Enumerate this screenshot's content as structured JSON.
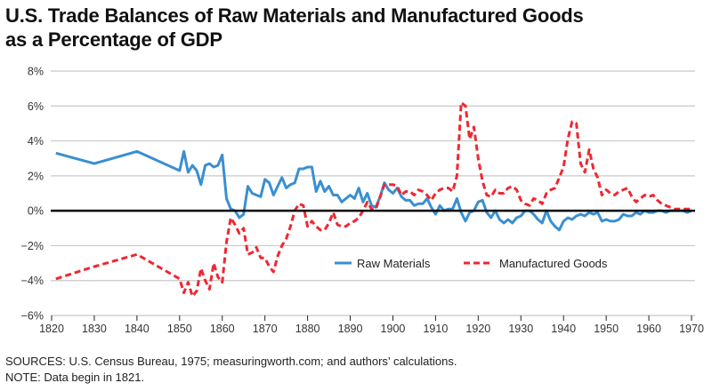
{
  "title_lines": [
    "U.S. Trade Balances of Raw Materials and Manufactured Goods",
    "as a Percentage of GDP"
  ],
  "footer": {
    "sources": "SOURCES: U.S. Census Bureau, 1975; measuringworth.com; and authors’ calculations.",
    "note": "NOTE: Data begin in 1821."
  },
  "colors": {
    "raw_materials": "#3A8FD1",
    "manufactured_goods": "#EE2832",
    "zero_line": "#000000",
    "grid": "#c8c8c8"
  },
  "chart_data": {
    "type": "line",
    "title": "U.S. Trade Balances of Raw Materials and Manufactured Goods as a Percentage of GDP",
    "xlabel": "",
    "ylabel": "",
    "xlim": [
      1820,
      1970
    ],
    "ylim": [
      -6,
      8
    ],
    "x_ticks": [
      1820,
      1830,
      1840,
      1850,
      1860,
      1870,
      1880,
      1890,
      1900,
      1910,
      1920,
      1930,
      1940,
      1950,
      1960,
      1970
    ],
    "x_tick_labels": [
      "1820",
      "1830",
      "1840",
      "1850",
      "1860",
      "1870",
      "1880",
      "1890",
      "1900",
      "1910",
      "1920",
      "1930",
      "1940",
      "1950",
      "1960",
      "1970"
    ],
    "y_ticks": [
      8,
      6,
      4,
      2,
      0,
      -2,
      -4,
      -6
    ],
    "y_tick_labels": [
      "8%",
      "6%",
      "4%",
      "2%",
      "0%",
      "−2%",
      "−4%",
      "−6%"
    ],
    "grid": true,
    "legend_position": "bottom-center",
    "x": [
      1821,
      1830,
      1840,
      1850,
      1851,
      1852,
      1853,
      1854,
      1855,
      1856,
      1857,
      1858,
      1859,
      1860,
      1861,
      1862,
      1863,
      1864,
      1865,
      1866,
      1867,
      1868,
      1869,
      1870,
      1871,
      1872,
      1873,
      1874,
      1875,
      1876,
      1877,
      1878,
      1879,
      1880,
      1881,
      1882,
      1883,
      1884,
      1885,
      1886,
      1887,
      1888,
      1889,
      1890,
      1891,
      1892,
      1893,
      1894,
      1895,
      1896,
      1897,
      1898,
      1899,
      1900,
      1901,
      1902,
      1903,
      1904,
      1905,
      1906,
      1907,
      1908,
      1909,
      1910,
      1911,
      1912,
      1913,
      1914,
      1915,
      1916,
      1917,
      1918,
      1919,
      1920,
      1921,
      1922,
      1923,
      1924,
      1925,
      1926,
      1927,
      1928,
      1929,
      1930,
      1931,
      1932,
      1933,
      1934,
      1935,
      1936,
      1937,
      1938,
      1939,
      1940,
      1941,
      1942,
      1943,
      1944,
      1945,
      1946,
      1947,
      1948,
      1949,
      1950,
      1951,
      1952,
      1953,
      1954,
      1955,
      1956,
      1957,
      1958,
      1959,
      1960,
      1961,
      1962,
      1963,
      1964,
      1965,
      1966,
      1967,
      1968,
      1969,
      1970
    ],
    "series": [
      {
        "name": "Raw Materials",
        "style": "solid",
        "values": [
          3.3,
          2.7,
          3.4,
          2.3,
          3.4,
          2.2,
          2.6,
          2.3,
          1.5,
          2.6,
          2.7,
          2.5,
          2.6,
          3.2,
          0.7,
          0.1,
          0.0,
          -0.4,
          -0.2,
          1.4,
          1.0,
          0.9,
          0.8,
          1.8,
          1.6,
          0.9,
          1.4,
          1.9,
          1.3,
          1.5,
          1.6,
          2.4,
          2.4,
          2.5,
          2.5,
          1.1,
          1.7,
          1.1,
          1.4,
          0.9,
          0.9,
          0.5,
          0.7,
          0.9,
          0.7,
          1.3,
          0.5,
          1.0,
          0.3,
          0.2,
          0.8,
          1.6,
          1.2,
          1.0,
          1.3,
          0.8,
          0.6,
          0.6,
          0.3,
          0.4,
          0.4,
          0.7,
          0.2,
          -0.2,
          0.3,
          0.0,
          0.1,
          0.1,
          0.7,
          -0.1,
          -0.6,
          -0.1,
          0.0,
          0.5,
          0.6,
          -0.1,
          -0.4,
          0.0,
          -0.5,
          -0.7,
          -0.5,
          -0.7,
          -0.4,
          -0.3,
          0.0,
          0.0,
          -0.2,
          -0.5,
          -0.7,
          0.0,
          -0.6,
          -0.9,
          -1.1,
          -0.6,
          -0.4,
          -0.5,
          -0.3,
          -0.2,
          -0.3,
          -0.1,
          -0.2,
          -0.1,
          -0.6,
          -0.5,
          -0.6,
          -0.6,
          -0.5,
          -0.2,
          -0.3,
          -0.3,
          -0.1,
          -0.2,
          0.0,
          -0.1,
          -0.1,
          0.0,
          0.0,
          -0.1,
          0.0,
          0.0,
          0.0,
          0.0,
          -0.1,
          0.0
        ]
      },
      {
        "name": "Manufactured Goods",
        "style": "dashed",
        "values": [
          -3.9,
          -3.2,
          -2.5,
          -3.9,
          -4.7,
          -4.1,
          -4.9,
          -4.6,
          -3.3,
          -4.0,
          -4.5,
          -3.0,
          -3.8,
          -4.1,
          -1.8,
          -0.4,
          -0.8,
          -1.3,
          -1.0,
          -2.5,
          -2.4,
          -2.1,
          -2.7,
          -2.7,
          -3.2,
          -3.5,
          -2.6,
          -2.0,
          -1.6,
          -0.9,
          0.0,
          0.4,
          0.3,
          -0.9,
          -0.6,
          -0.9,
          -1.1,
          -1.1,
          -0.7,
          -0.1,
          -0.8,
          -0.9,
          -0.9,
          -0.7,
          -0.6,
          -0.4,
          0.0,
          0.5,
          0.1,
          0.1,
          0.8,
          1.5,
          1.5,
          1.5,
          1.4,
          0.9,
          1.1,
          1.1,
          0.9,
          1.2,
          1.1,
          0.9,
          0.6,
          1.0,
          1.2,
          1.3,
          1.3,
          1.1,
          2.0,
          6.2,
          6.0,
          4.1,
          4.8,
          3.0,
          1.7,
          0.9,
          0.8,
          1.2,
          1.0,
          1.0,
          1.3,
          1.4,
          1.2,
          0.6,
          0.4,
          0.3,
          0.7,
          0.6,
          0.4,
          1.0,
          1.2,
          1.3,
          1.9,
          2.5,
          4.1,
          5.1,
          5.0,
          2.7,
          2.2,
          3.5,
          2.4,
          1.9,
          0.9,
          1.2,
          1.0,
          0.9,
          1.1,
          1.2,
          1.3,
          0.8,
          0.5,
          0.7,
          0.9,
          0.8,
          0.9,
          0.6,
          0.4,
          0.3,
          0.2,
          0.1,
          0.1,
          0.1,
          0.1,
          0.1
        ]
      }
    ]
  }
}
